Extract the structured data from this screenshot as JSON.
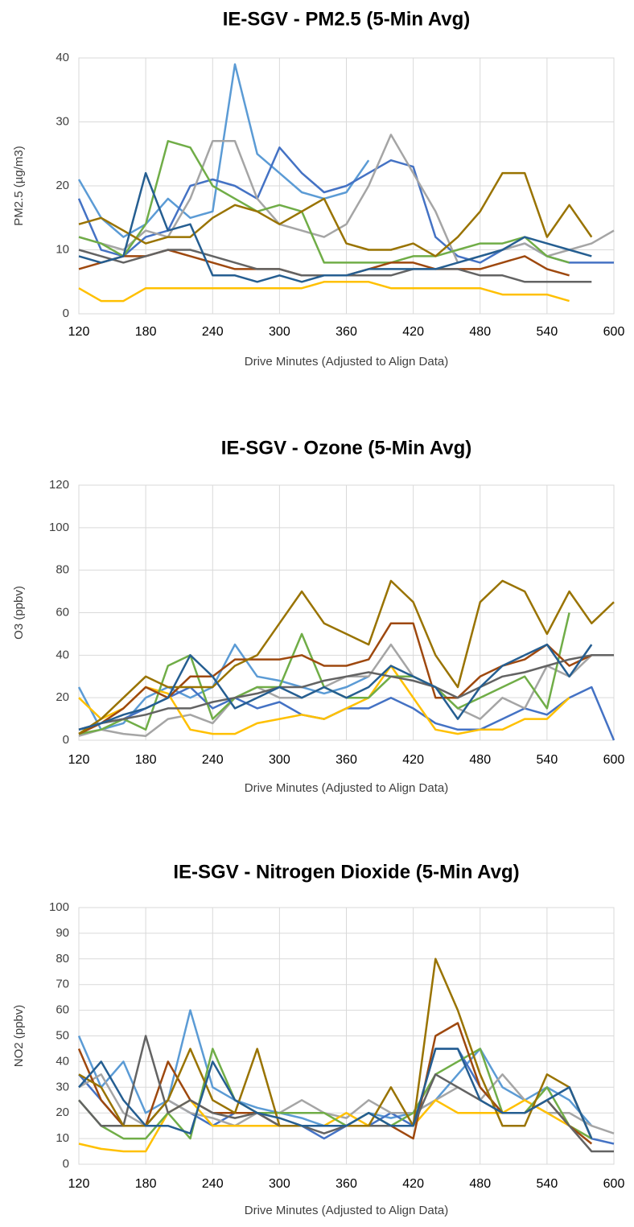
{
  "chart_data": [
    {
      "type": "line",
      "title": "IE-SGV - PM2.5 (5-Min Avg)",
      "x_label": "Drive Minutes (Adjusted to Align Data)",
      "y_label": "PM2.5 (µg/m3)",
      "x": [
        120,
        140,
        160,
        180,
        200,
        220,
        240,
        260,
        280,
        300,
        320,
        340,
        360,
        380,
        400,
        420,
        440,
        460,
        480,
        500,
        520,
        540,
        560,
        580,
        600
      ],
      "xlim": [
        120,
        600
      ],
      "xticks": [
        120,
        180,
        240,
        300,
        360,
        420,
        480,
        540,
        600
      ],
      "ylim": [
        0,
        40
      ],
      "yticks": [
        0,
        10,
        20,
        30,
        40
      ],
      "grid": true,
      "series": [
        {
          "color": "#5b9bd5",
          "values": [
            21,
            15,
            12,
            14,
            18,
            15,
            16,
            39,
            25,
            22,
            19,
            18,
            19,
            24,
            null,
            null,
            null,
            null,
            null,
            null,
            null,
            null,
            null,
            null,
            null
          ]
        },
        {
          "color": "#4472c4",
          "values": [
            18,
            10,
            9,
            12,
            13,
            20,
            21,
            20,
            18,
            26,
            22,
            19,
            20,
            22,
            24,
            23,
            12,
            9,
            8,
            10,
            11,
            9,
            8,
            8,
            8
          ]
        },
        {
          "color": "#a5a5a5",
          "values": [
            12,
            11,
            10,
            13,
            12,
            18,
            27,
            27,
            18,
            14,
            13,
            12,
            14,
            20,
            28,
            22,
            16,
            8,
            9,
            10,
            11,
            9,
            10,
            11,
            13
          ]
        },
        {
          "color": "#ffc000",
          "values": [
            4,
            2,
            2,
            4,
            4,
            4,
            4,
            4,
            4,
            4,
            4,
            5,
            5,
            5,
            4,
            4,
            4,
            4,
            4,
            3,
            3,
            3,
            2,
            null,
            null
          ]
        },
        {
          "color": "#70ad47",
          "values": [
            12,
            11,
            9,
            14,
            27,
            26,
            20,
            18,
            16,
            17,
            16,
            8,
            8,
            8,
            8,
            9,
            9,
            10,
            11,
            11,
            12,
            9,
            8,
            null,
            null
          ]
        },
        {
          "color": "#9e480e",
          "values": [
            7,
            8,
            9,
            9,
            10,
            9,
            8,
            7,
            7,
            7,
            6,
            6,
            6,
            7,
            8,
            8,
            7,
            7,
            7,
            8,
            9,
            7,
            6,
            null,
            null
          ]
        },
        {
          "color": "#636363",
          "values": [
            10,
            9,
            8,
            9,
            10,
            10,
            9,
            8,
            7,
            7,
            6,
            6,
            6,
            6,
            6,
            7,
            7,
            7,
            6,
            6,
            5,
            5,
            5,
            5,
            null
          ]
        },
        {
          "color": "#997300",
          "values": [
            14,
            15,
            13,
            11,
            12,
            12,
            15,
            17,
            16,
            14,
            16,
            18,
            11,
            10,
            10,
            11,
            9,
            12,
            16,
            22,
            22,
            12,
            17,
            12,
            null
          ]
        },
        {
          "color": "#255e91",
          "values": [
            9,
            8,
            9,
            22,
            13,
            14,
            6,
            6,
            5,
            6,
            5,
            6,
            6,
            7,
            7,
            7,
            7,
            8,
            9,
            10,
            12,
            11,
            10,
            9,
            null
          ]
        }
      ]
    },
    {
      "type": "line",
      "title": "IE-SGV - Ozone (5-Min Avg)",
      "x_label": "Drive Minutes (Adjusted to Align Data)",
      "y_label": "O3 (ppbv)",
      "x": [
        120,
        140,
        160,
        180,
        200,
        220,
        240,
        260,
        280,
        300,
        320,
        340,
        360,
        380,
        400,
        420,
        440,
        460,
        480,
        500,
        520,
        540,
        560,
        580,
        600
      ],
      "xlim": [
        120,
        600
      ],
      "xticks": [
        120,
        180,
        240,
        300,
        360,
        420,
        480,
        540,
        600
      ],
      "ylim": [
        0,
        120
      ],
      "yticks": [
        0,
        20,
        40,
        60,
        80,
        100,
        120
      ],
      "grid": true,
      "series": [
        {
          "color": "#5b9bd5",
          "values": [
            25,
            5,
            8,
            20,
            25,
            20,
            25,
            45,
            30,
            28,
            25,
            22,
            25,
            30,
            null,
            null,
            null,
            null,
            null,
            null,
            null,
            null,
            null,
            null,
            null
          ]
        },
        {
          "color": "#4472c4",
          "values": [
            5,
            8,
            10,
            15,
            20,
            25,
            15,
            20,
            15,
            18,
            12,
            10,
            15,
            15,
            20,
            15,
            8,
            5,
            5,
            10,
            15,
            12,
            20,
            25,
            0
          ]
        },
        {
          "color": "#a5a5a5",
          "values": [
            2,
            5,
            3,
            2,
            10,
            12,
            8,
            20,
            25,
            20,
            20,
            25,
            30,
            30,
            45,
            30,
            25,
            15,
            10,
            20,
            15,
            35,
            30,
            40,
            40
          ]
        },
        {
          "color": "#ffc000",
          "values": [
            20,
            10,
            15,
            25,
            22,
            5,
            3,
            3,
            8,
            10,
            12,
            10,
            15,
            20,
            35,
            20,
            5,
            3,
            5,
            5,
            10,
            10,
            20,
            null,
            null
          ]
        },
        {
          "color": "#70ad47",
          "values": [
            3,
            5,
            10,
            5,
            35,
            40,
            10,
            20,
            25,
            25,
            50,
            25,
            20,
            20,
            30,
            30,
            25,
            15,
            20,
            25,
            30,
            15,
            60,
            null,
            null
          ]
        },
        {
          "color": "#9e480e",
          "values": [
            3,
            8,
            15,
            25,
            20,
            30,
            30,
            38,
            38,
            38,
            40,
            35,
            35,
            38,
            55,
            55,
            20,
            20,
            30,
            35,
            38,
            45,
            35,
            40,
            null
          ]
        },
        {
          "color": "#636363",
          "values": [
            5,
            8,
            10,
            12,
            15,
            15,
            18,
            20,
            22,
            25,
            25,
            28,
            30,
            32,
            30,
            28,
            25,
            20,
            25,
            30,
            32,
            35,
            38,
            40,
            40
          ]
        },
        {
          "color": "#997300",
          "values": [
            3,
            10,
            20,
            30,
            25,
            25,
            25,
            35,
            40,
            55,
            70,
            55,
            50,
            45,
            75,
            65,
            40,
            25,
            65,
            75,
            70,
            50,
            70,
            55,
            65
          ]
        },
        {
          "color": "#255e91",
          "values": [
            5,
            8,
            12,
            15,
            20,
            40,
            30,
            15,
            20,
            25,
            20,
            25,
            20,
            25,
            35,
            30,
            25,
            10,
            25,
            35,
            40,
            45,
            30,
            45,
            null
          ]
        }
      ]
    },
    {
      "type": "line",
      "title": "IE-SGV - Nitrogen Dioxide (5-Min Avg)",
      "x_label": "Drive Minutes (Adjusted to Align Data)",
      "y_label": "NO2 (ppbv)",
      "x": [
        120,
        140,
        160,
        180,
        200,
        220,
        240,
        260,
        280,
        300,
        320,
        340,
        360,
        380,
        400,
        420,
        440,
        460,
        480,
        500,
        520,
        540,
        560,
        580,
        600
      ],
      "xlim": [
        120,
        600
      ],
      "xticks": [
        120,
        180,
        240,
        300,
        360,
        420,
        480,
        540,
        600
      ],
      "ylim": [
        0,
        100
      ],
      "yticks": [
        0,
        10,
        20,
        30,
        40,
        50,
        60,
        70,
        80,
        90,
        100
      ],
      "grid": true,
      "series": [
        {
          "color": "#5b9bd5",
          "values": [
            50,
            30,
            40,
            20,
            25,
            60,
            30,
            25,
            22,
            20,
            18,
            15,
            15,
            20,
            18,
            20,
            25,
            35,
            45,
            30,
            25,
            30,
            25,
            15,
            null
          ]
        },
        {
          "color": "#4472c4",
          "values": [
            35,
            25,
            15,
            15,
            25,
            20,
            15,
            20,
            20,
            15,
            15,
            10,
            15,
            15,
            20,
            15,
            45,
            45,
            30,
            20,
            20,
            25,
            30,
            10,
            8
          ]
        },
        {
          "color": "#a5a5a5",
          "values": [
            30,
            35,
            20,
            15,
            25,
            20,
            18,
            15,
            20,
            20,
            25,
            20,
            18,
            25,
            20,
            20,
            25,
            30,
            25,
            35,
            25,
            20,
            20,
            15,
            12
          ]
        },
        {
          "color": "#ffc000",
          "values": [
            8,
            6,
            5,
            5,
            20,
            25,
            15,
            15,
            15,
            15,
            15,
            15,
            20,
            15,
            15,
            15,
            25,
            20,
            20,
            20,
            25,
            20,
            15,
            10,
            null
          ]
        },
        {
          "color": "#70ad47",
          "values": [
            25,
            15,
            10,
            10,
            20,
            10,
            45,
            25,
            20,
            20,
            20,
            20,
            15,
            20,
            15,
            20,
            35,
            40,
            45,
            20,
            20,
            30,
            15,
            10,
            null
          ]
        },
        {
          "color": "#9e480e",
          "values": [
            45,
            25,
            15,
            15,
            40,
            25,
            20,
            20,
            20,
            15,
            15,
            15,
            15,
            15,
            15,
            10,
            50,
            55,
            30,
            20,
            20,
            25,
            15,
            8,
            null
          ]
        },
        {
          "color": "#636363",
          "values": [
            25,
            15,
            15,
            50,
            20,
            25,
            20,
            18,
            20,
            15,
            15,
            12,
            15,
            15,
            15,
            15,
            35,
            30,
            25,
            20,
            20,
            25,
            15,
            5,
            5
          ]
        },
        {
          "color": "#997300",
          "values": [
            35,
            30,
            15,
            15,
            25,
            45,
            25,
            20,
            45,
            15,
            15,
            15,
            15,
            15,
            30,
            15,
            80,
            60,
            35,
            15,
            15,
            35,
            30,
            10,
            null
          ]
        },
        {
          "color": "#255e91",
          "values": [
            30,
            40,
            25,
            15,
            15,
            12,
            40,
            25,
            20,
            18,
            15,
            15,
            15,
            20,
            15,
            15,
            45,
            45,
            25,
            20,
            20,
            25,
            30,
            10,
            null
          ]
        }
      ]
    }
  ]
}
